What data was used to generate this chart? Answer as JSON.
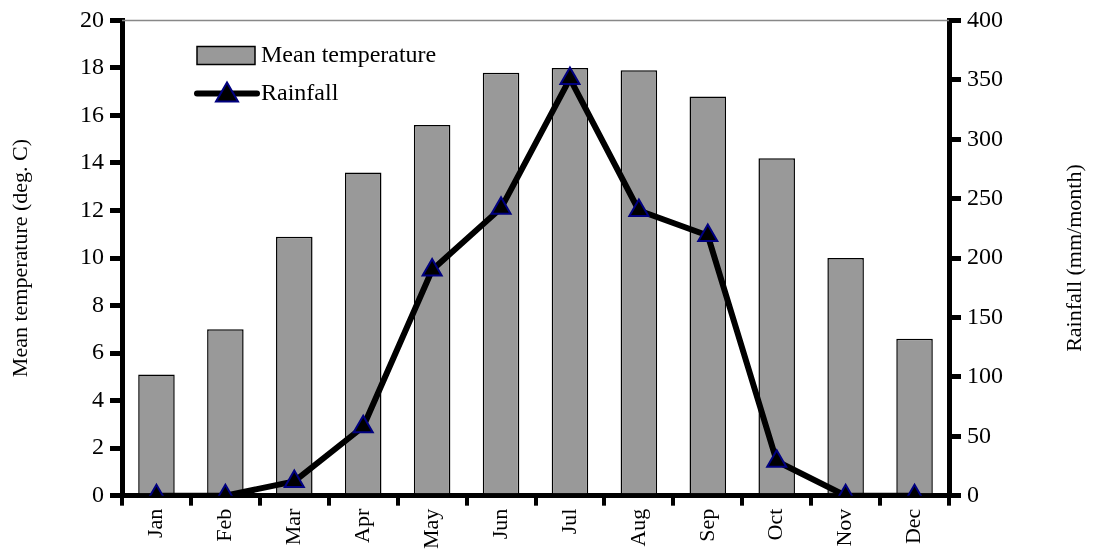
{
  "chart_data": {
    "type": "bar",
    "categories": [
      "Jan",
      "Feb",
      "Mar",
      "Apr",
      "May",
      "Jun",
      "Jul",
      "Aug",
      "Sep",
      "Oct",
      "Nov",
      "Dec"
    ],
    "series": [
      {
        "name": "Mean temperature",
        "color": "#999999",
        "values": [
          5.1,
          7.0,
          10.9,
          13.6,
          15.6,
          17.8,
          18.0,
          17.9,
          16.8,
          14.2,
          10.0,
          6.6
        ]
      },
      {
        "name": "Rainfall",
        "type": "line",
        "axis": "y2",
        "color": "#000000",
        "marker": "triangle",
        "values": [
          0,
          0,
          12,
          58,
          190,
          242,
          351,
          240,
          219,
          29,
          0,
          0
        ]
      }
    ],
    "ylabel": "Mean temperature (deg. C)",
    "y2label": "Rainfall (mm/month)",
    "ylim": [
      0,
      20
    ],
    "yticks": [
      0,
      2,
      4,
      6,
      8,
      10,
      12,
      14,
      16,
      18,
      20
    ],
    "y2lim": [
      0,
      400
    ],
    "y2ticks": [
      0,
      50,
      100,
      150,
      200,
      250,
      300,
      350,
      400
    ],
    "grid": false,
    "legend": "top left"
  }
}
